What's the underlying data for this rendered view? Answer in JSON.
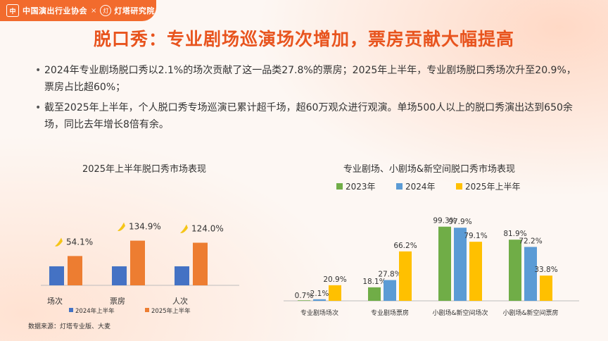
{
  "header": {
    "org_name": "中国演出行业协会",
    "separator": "×",
    "partner_name": "灯塔研究院"
  },
  "title": "脱口秀：专业剧场巡演场次增加，票房贡献大幅提高",
  "bullets": [
    "2024年专业剧场脱口秀以2.1%的场次贡献了这一品类27.8%的票房；2025年上半年，专业剧场脱口秀场次升至20.9%，票房占比超60%；",
    "截至2025年上半年，个人脱口秀专场巡演已累计超千场，超60万观众进行观演。单场500人以上的脱口秀演出达到650余场，同比去年增长8倍有余。"
  ],
  "source": "数据来源：灯塔专业版、大麦",
  "chart_data": [
    {
      "type": "bar",
      "title": "2025年上半年脱口秀市场表现",
      "categories": [
        "场次",
        "票房",
        "人次"
      ],
      "series": [
        {
          "name": "2024年上半年",
          "color": "#4472c4",
          "values": [
            1,
            1,
            1
          ]
        },
        {
          "name": "2025年上半年",
          "color": "#ed7d31",
          "values": [
            1.541,
            2.349,
            2.24
          ]
        }
      ],
      "growth_labels": [
        "54.1%",
        "134.9%",
        "124.0%"
      ],
      "legend_position": "bottom",
      "grid": false
    },
    {
      "type": "bar",
      "title": "专业剧场、小剧场&新空间脱口秀市场表现",
      "categories": [
        "专业剧场场次",
        "专业剧场票房",
        "小剧场&新空间场次",
        "小剧场&新空间票房"
      ],
      "series": [
        {
          "name": "2023年",
          "color": "#70ad47",
          "values": [
            0.7,
            18.1,
            99.3,
            81.9
          ]
        },
        {
          "name": "2024年",
          "color": "#5b9bd5",
          "values": [
            2.1,
            27.8,
            97.9,
            72.2
          ]
        },
        {
          "name": "2025年上半年",
          "color": "#ffc000",
          "values": [
            20.9,
            66.2,
            79.1,
            33.8
          ]
        }
      ],
      "value_labels": [
        [
          "0.7%",
          "18.1%",
          "99.3%",
          "81.9%"
        ],
        [
          "2.1%",
          "27.8%",
          "97.9%",
          "72.2%"
        ],
        [
          "20.9%",
          "66.2%",
          "79.1%",
          "33.8%"
        ]
      ],
      "ylim": [
        0,
        100
      ],
      "legend_position": "top",
      "grid": false
    }
  ],
  "colors": {
    "accent": "#e8541e",
    "arrow": "#f5c518"
  }
}
